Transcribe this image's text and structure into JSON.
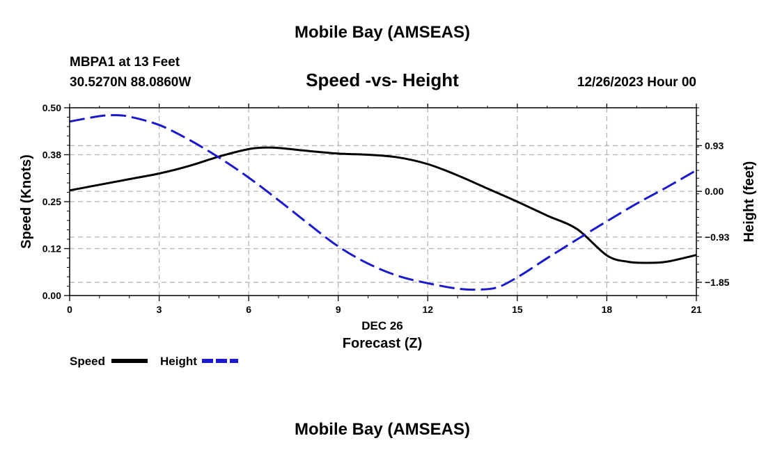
{
  "page": {
    "top_title": "Mobile Bay (AMSEAS)",
    "bottom_title": "Mobile Bay (AMSEAS)"
  },
  "header": {
    "station": "MBPA1 at 13 Feet",
    "coords": "30.5270N  88.0860W",
    "chart_title": "Speed -vs- Height",
    "datetime": "12/26/2023 Hour 00"
  },
  "colors": {
    "speed": "#000000",
    "height": "#1a1acc",
    "grid": "#b4b4b4"
  },
  "chart_data": {
    "type": "line",
    "title": "Speed -vs- Height",
    "xlabel": "Forecast (Z)",
    "xdate": "DEC 26",
    "ylabel": "Speed (Knots)",
    "y2label": "Height (feet)",
    "xlim": [
      0,
      21
    ],
    "ylim": [
      0,
      0.5
    ],
    "y2lim": [
      -2.12,
      1.7
    ],
    "xticks": [
      0,
      3,
      6,
      9,
      12,
      15,
      18,
      21
    ],
    "xtick_labels": [
      "0",
      "3",
      "6",
      "9",
      "12",
      "15",
      "18",
      "21"
    ],
    "yticks": [
      0.0,
      0.125,
      0.25,
      0.375,
      0.5
    ],
    "ytick_labels": [
      "0.00",
      "0.12",
      "0.25",
      "0.38",
      "0.50"
    ],
    "y2ticks": [
      0.93,
      0.0,
      -0.93,
      -1.85
    ],
    "y2tick_labels": [
      "0.93",
      "0.00",
      "-0.93",
      "-1.85"
    ],
    "grid": true,
    "legend": "bottom-left",
    "series": [
      {
        "name": "Speed",
        "axis": "left",
        "style": "solid",
        "x": [
          0,
          1,
          2,
          3,
          4,
          5,
          6,
          6.5,
          7,
          8,
          9,
          10,
          11,
          12,
          13,
          14,
          15,
          16,
          17,
          18,
          18.7,
          19.3,
          20,
          21
        ],
        "y": [
          0.28,
          0.295,
          0.31,
          0.325,
          0.345,
          0.37,
          0.39,
          0.394,
          0.393,
          0.385,
          0.378,
          0.375,
          0.368,
          0.35,
          0.32,
          0.285,
          0.25,
          0.213,
          0.177,
          0.107,
          0.09,
          0.087,
          0.09,
          0.108
        ]
      },
      {
        "name": "Height",
        "axis": "right",
        "style": "dashed",
        "x": [
          0,
          1,
          1.5,
          2,
          3,
          4,
          5,
          6,
          7,
          8,
          9,
          10,
          11,
          12,
          13,
          13.6,
          14.3,
          15,
          16,
          17,
          18,
          19,
          20,
          21
        ],
        "y": [
          1.42,
          1.53,
          1.55,
          1.52,
          1.35,
          1.05,
          0.69,
          0.28,
          -0.18,
          -0.66,
          -1.12,
          -1.47,
          -1.72,
          -1.87,
          -1.98,
          -2.0,
          -1.96,
          -1.75,
          -1.36,
          -0.98,
          -0.61,
          -0.25,
          0.08,
          0.43
        ]
      }
    ]
  },
  "legend": {
    "speed_label": "Speed",
    "height_label": "Height"
  }
}
